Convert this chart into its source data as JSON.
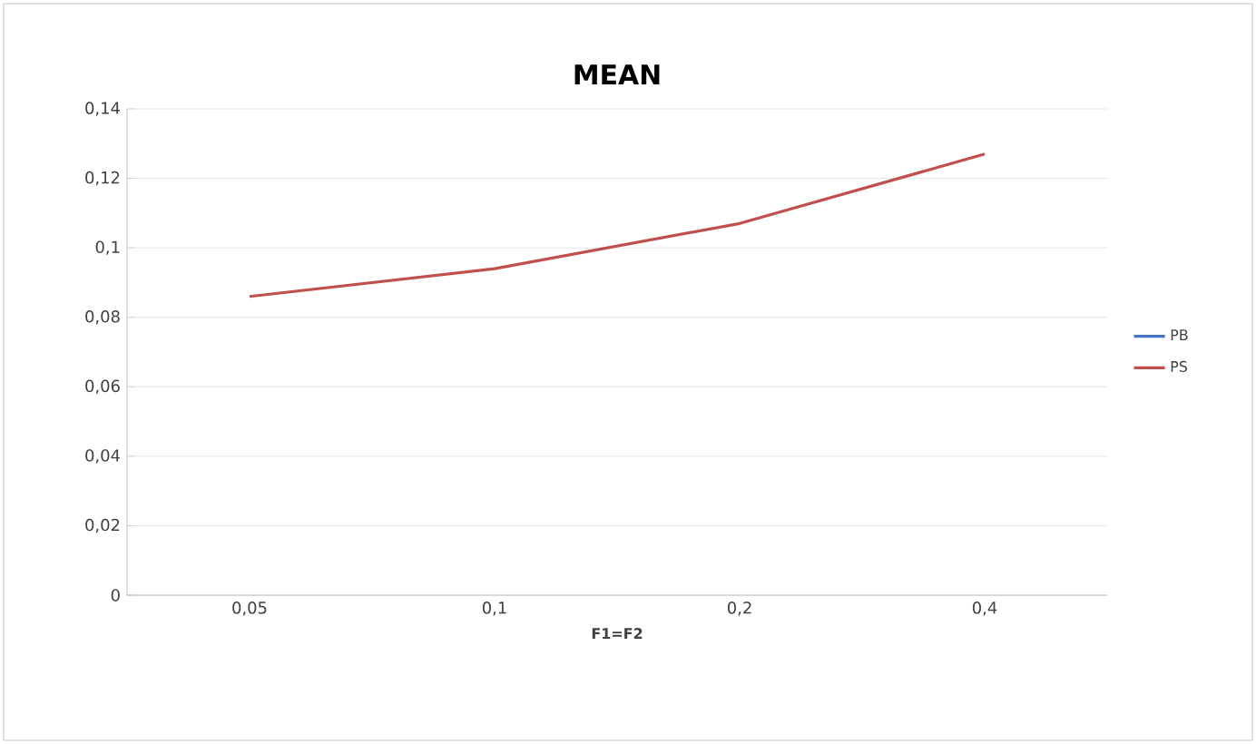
{
  "chart_data": {
    "type": "line",
    "title": "MEAN",
    "xlabel": "F1=F2",
    "categories": [
      "0,05",
      "0,1",
      "0,2",
      "0,4"
    ],
    "series": [
      {
        "name": "PB",
        "color": "#4472c4",
        "values": [
          null,
          null,
          null,
          null
        ]
      },
      {
        "name": "PS",
        "color": "#c0504d",
        "values": [
          0.086,
          0.094,
          0.107,
          0.127
        ]
      }
    ],
    "ylim": [
      0,
      0.14
    ],
    "yticks": [
      {
        "value": 0,
        "label": "0"
      },
      {
        "value": 0.02,
        "label": "0,02"
      },
      {
        "value": 0.04,
        "label": "0,04"
      },
      {
        "value": 0.06,
        "label": "0,06"
      },
      {
        "value": 0.08,
        "label": "0,08"
      },
      {
        "value": 0.1,
        "label": "0,1"
      },
      {
        "value": 0.12,
        "label": "0,12"
      },
      {
        "value": 0.14,
        "label": "0,14"
      }
    ],
    "grid": "y",
    "legend": "right",
    "marker": "none",
    "line_style": "solid"
  }
}
